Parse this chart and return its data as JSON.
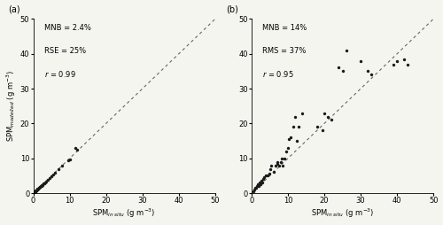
{
  "panel_a": {
    "label": "a",
    "x": [
      0.2,
      0.3,
      0.4,
      0.5,
      0.6,
      0.7,
      0.8,
      0.9,
      1.0,
      1.1,
      1.2,
      1.3,
      1.4,
      1.5,
      1.6,
      1.7,
      1.8,
      1.9,
      2.0,
      2.2,
      2.4,
      2.5,
      2.8,
      3.0,
      3.2,
      3.5,
      4.0,
      4.5,
      5.0,
      5.5,
      6.0,
      7.0,
      8.0,
      9.5,
      10.0,
      11.5,
      12.0
    ],
    "y": [
      0.2,
      0.3,
      0.4,
      0.5,
      0.6,
      0.7,
      0.8,
      0.9,
      1.0,
      1.1,
      1.2,
      1.3,
      1.4,
      1.5,
      1.6,
      1.7,
      1.8,
      1.9,
      2.0,
      2.1,
      2.3,
      2.4,
      2.7,
      2.9,
      3.1,
      3.4,
      3.9,
      4.4,
      4.9,
      5.3,
      5.8,
      6.8,
      7.8,
      9.5,
      9.6,
      13.1,
      12.5
    ],
    "ann_lines": [
      "MNB = 2.4%",
      "RSE = 25%",
      "$r$ = 0.99"
    ],
    "xlabel": "SPM$_{in\\ situ}$ (g m$^{-3}$)",
    "ylabel": "SPM$_{modelled}$ (g m$^{-3}$)",
    "xlim": [
      0,
      50
    ],
    "ylim": [
      0,
      50
    ],
    "xticks": [
      0,
      10,
      20,
      30,
      40,
      50
    ],
    "yticks": [
      0,
      10,
      20,
      30,
      40,
      50
    ]
  },
  "panel_b": {
    "label": "b",
    "x": [
      0.5,
      0.8,
      1.0,
      1.2,
      1.5,
      1.8,
      2.0,
      2.2,
      2.5,
      2.8,
      3.0,
      3.2,
      3.5,
      4.0,
      4.5,
      5.0,
      5.2,
      5.5,
      6.0,
      6.5,
      7.0,
      7.2,
      7.5,
      8.0,
      8.2,
      8.5,
      9.0,
      9.5,
      10.0,
      10.3,
      10.8,
      11.5,
      12.0,
      12.5,
      13.0,
      14.0,
      18.0,
      19.5,
      20.0,
      21.0,
      22.0,
      24.0,
      25.0,
      26.0,
      30.0,
      32.0,
      33.0,
      39.0,
      40.0,
      42.0,
      43.0
    ],
    "y": [
      0.5,
      1.0,
      1.5,
      1.5,
      2.0,
      2.5,
      2.0,
      3.0,
      2.5,
      3.5,
      3.0,
      4.0,
      4.5,
      5.0,
      5.0,
      5.5,
      7.0,
      8.0,
      6.0,
      8.0,
      8.5,
      9.0,
      8.0,
      9.0,
      10.0,
      8.0,
      10.0,
      12.0,
      13.0,
      15.5,
      16.0,
      19.0,
      22.0,
      15.0,
      19.0,
      23.0,
      19.0,
      18.0,
      23.0,
      22.0,
      21.0,
      36.0,
      35.0,
      41.0,
      38.0,
      35.0,
      34.0,
      37.0,
      38.0,
      38.5,
      37.0
    ],
    "ann_lines": [
      "MNB = 14%",
      "RMS = 37%",
      "$r$ = 0.95"
    ],
    "xlabel": "SPM$_{in\\ situ}$ (g m$^{-3}$)",
    "ylabel": "",
    "xlim": [
      0,
      50
    ],
    "ylim": [
      0,
      50
    ],
    "xticks": [
      0,
      10,
      20,
      30,
      40,
      50
    ],
    "yticks": [
      0,
      10,
      20,
      30,
      40,
      50
    ]
  },
  "marker_color": "#1a1a1a",
  "marker_size": 6,
  "line_color": "#666666",
  "bg_color": "#f5f5f0",
  "font_size": 6,
  "annotation_font_size": 6,
  "label_font_size": 7
}
